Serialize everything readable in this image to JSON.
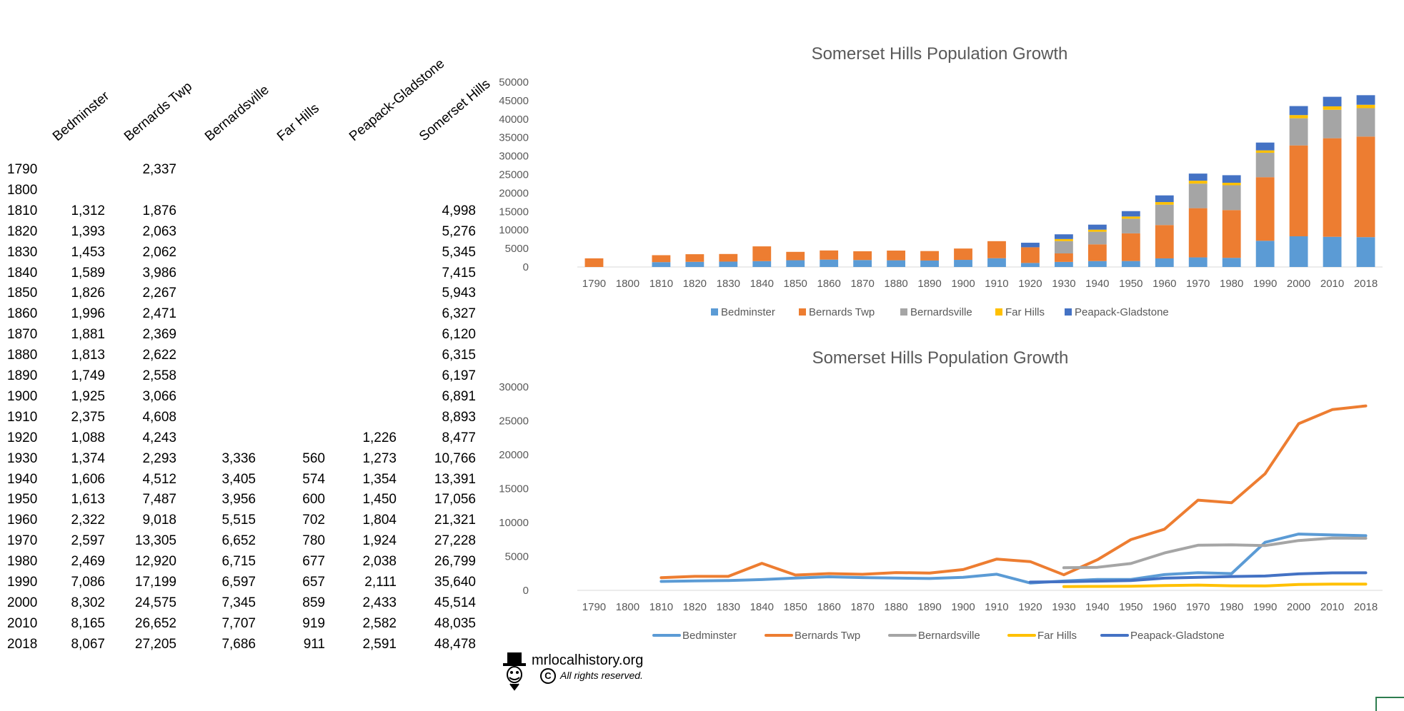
{
  "table": {
    "columns": [
      "Bedminster",
      "Bernards Twp",
      "Bernardsville",
      "Far Hills",
      "Peapack-Gladstone",
      "Somerset Hills"
    ],
    "rows": [
      {
        "year": "1790",
        "values": [
          "",
          "2,337",
          "",
          "",
          "",
          ""
        ]
      },
      {
        "year": "1800",
        "values": [
          "",
          "",
          "",
          "",
          "",
          ""
        ]
      },
      {
        "year": "1810",
        "values": [
          "1,312",
          "1,876",
          "",
          "",
          "",
          "4,998"
        ]
      },
      {
        "year": "1820",
        "values": [
          "1,393",
          "2,063",
          "",
          "",
          "",
          "5,276"
        ]
      },
      {
        "year": "1830",
        "values": [
          "1,453",
          "2,062",
          "",
          "",
          "",
          "5,345"
        ]
      },
      {
        "year": "1840",
        "values": [
          "1,589",
          "3,986",
          "",
          "",
          "",
          "7,415"
        ]
      },
      {
        "year": "1850",
        "values": [
          "1,826",
          "2,267",
          "",
          "",
          "",
          "5,943"
        ]
      },
      {
        "year": "1860",
        "values": [
          "1,996",
          "2,471",
          "",
          "",
          "",
          "6,327"
        ]
      },
      {
        "year": "1870",
        "values": [
          "1,881",
          "2,369",
          "",
          "",
          "",
          "6,120"
        ]
      },
      {
        "year": "1880",
        "values": [
          "1,813",
          "2,622",
          "",
          "",
          "",
          "6,315"
        ]
      },
      {
        "year": "1890",
        "values": [
          "1,749",
          "2,558",
          "",
          "",
          "",
          "6,197"
        ]
      },
      {
        "year": "1900",
        "values": [
          "1,925",
          "3,066",
          "",
          "",
          "",
          "6,891"
        ]
      },
      {
        "year": "1910",
        "values": [
          "2,375",
          "4,608",
          "",
          "",
          "",
          "8,893"
        ]
      },
      {
        "year": "1920",
        "values": [
          "1,088",
          "4,243",
          "",
          "",
          "1,226",
          "8,477"
        ]
      },
      {
        "year": "1930",
        "values": [
          "1,374",
          "2,293",
          "3,336",
          "560",
          "1,273",
          "10,766"
        ]
      },
      {
        "year": "1940",
        "values": [
          "1,606",
          "4,512",
          "3,405",
          "574",
          "1,354",
          "13,391"
        ]
      },
      {
        "year": "1950",
        "values": [
          "1,613",
          "7,487",
          "3,956",
          "600",
          "1,450",
          "17,056"
        ]
      },
      {
        "year": "1960",
        "values": [
          "2,322",
          "9,018",
          "5,515",
          "702",
          "1,804",
          "21,321"
        ]
      },
      {
        "year": "1970",
        "values": [
          "2,597",
          "13,305",
          "6,652",
          "780",
          "1,924",
          "27,228"
        ]
      },
      {
        "year": "1980",
        "values": [
          "2,469",
          "12,920",
          "6,715",
          "677",
          "2,038",
          "26,799"
        ]
      },
      {
        "year": "1990",
        "values": [
          "7,086",
          "17,199",
          "6,597",
          "657",
          "2,111",
          "35,640"
        ]
      },
      {
        "year": "2000",
        "values": [
          "8,302",
          "24,575",
          "7,345",
          "859",
          "2,433",
          "45,514"
        ]
      },
      {
        "year": "2010",
        "values": [
          "8,165",
          "26,652",
          "7,707",
          "919",
          "2,582",
          "48,035"
        ]
      },
      {
        "year": "2018",
        "values": [
          "8,067",
          "27,205",
          "7,686",
          "911",
          "2,591",
          "48,478"
        ]
      }
    ]
  },
  "chart_data": [
    {
      "type": "bar",
      "stacked": true,
      "title": "Somerset Hills Population Growth",
      "categories": [
        "1790",
        "1800",
        "1810",
        "1820",
        "1830",
        "1840",
        "1850",
        "1860",
        "1870",
        "1880",
        "1890",
        "1900",
        "1910",
        "1920",
        "1930",
        "1940",
        "1950",
        "1960",
        "1970",
        "1980",
        "1990",
        "2000",
        "2010",
        "2018"
      ],
      "ylim": [
        0,
        50000
      ],
      "yticks": [
        0,
        5000,
        10000,
        15000,
        20000,
        25000,
        30000,
        35000,
        40000,
        45000,
        50000
      ],
      "legend": "bottom",
      "grid": false,
      "series": [
        {
          "name": "Bedminster",
          "color": "#5b9bd5",
          "values": [
            null,
            null,
            1312,
            1393,
            1453,
            1589,
            1826,
            1996,
            1881,
            1813,
            1749,
            1925,
            2375,
            1088,
            1374,
            1606,
            1613,
            2322,
            2597,
            2469,
            7086,
            8302,
            8165,
            8067
          ]
        },
        {
          "name": "Bernards Twp",
          "color": "#ed7d31",
          "values": [
            2337,
            null,
            1876,
            2063,
            2062,
            3986,
            2267,
            2471,
            2369,
            2622,
            2558,
            3066,
            4608,
            4243,
            2293,
            4512,
            7487,
            9018,
            13305,
            12920,
            17199,
            24575,
            26652,
            27205
          ]
        },
        {
          "name": "Bernardsville",
          "color": "#a5a5a5",
          "values": [
            null,
            null,
            null,
            null,
            null,
            null,
            null,
            null,
            null,
            null,
            null,
            null,
            null,
            null,
            3336,
            3405,
            3956,
            5515,
            6652,
            6715,
            6597,
            7345,
            7707,
            7686
          ]
        },
        {
          "name": "Far Hills",
          "color": "#ffc000",
          "values": [
            null,
            null,
            null,
            null,
            null,
            null,
            null,
            null,
            null,
            null,
            null,
            null,
            null,
            null,
            560,
            574,
            600,
            702,
            780,
            677,
            657,
            859,
            919,
            911
          ]
        },
        {
          "name": "Peapack-Gladstone",
          "color": "#4472c4",
          "values": [
            null,
            null,
            null,
            null,
            null,
            null,
            null,
            null,
            null,
            null,
            null,
            null,
            null,
            1226,
            1273,
            1354,
            1450,
            1804,
            1924,
            2038,
            2111,
            2433,
            2582,
            2591
          ]
        }
      ]
    },
    {
      "type": "line",
      "title": "Somerset Hills Population Growth",
      "categories": [
        "1790",
        "1800",
        "1810",
        "1820",
        "1830",
        "1840",
        "1850",
        "1860",
        "1870",
        "1880",
        "1890",
        "1900",
        "1910",
        "1920",
        "1930",
        "1940",
        "1950",
        "1960",
        "1970",
        "1980",
        "1990",
        "2000",
        "2010",
        "2018"
      ],
      "ylim": [
        0,
        30000
      ],
      "yticks": [
        0,
        5000,
        10000,
        15000,
        20000,
        25000,
        30000
      ],
      "legend": "bottom",
      "grid": false,
      "series": [
        {
          "name": "Bedminster",
          "color": "#5b9bd5",
          "values": [
            null,
            null,
            1312,
            1393,
            1453,
            1589,
            1826,
            1996,
            1881,
            1813,
            1749,
            1925,
            2375,
            1088,
            1374,
            1606,
            1613,
            2322,
            2597,
            2469,
            7086,
            8302,
            8165,
            8067
          ]
        },
        {
          "name": "Bernards Twp",
          "color": "#ed7d31",
          "values": [
            null,
            null,
            1876,
            2063,
            2062,
            3986,
            2267,
            2471,
            2369,
            2622,
            2558,
            3066,
            4608,
            4243,
            2293,
            4512,
            7487,
            9018,
            13305,
            12920,
            17199,
            24575,
            26652,
            27205
          ]
        },
        {
          "name": "Bernardsville",
          "color": "#a5a5a5",
          "values": [
            null,
            null,
            null,
            null,
            null,
            null,
            null,
            null,
            null,
            null,
            null,
            null,
            null,
            null,
            3336,
            3405,
            3956,
            5515,
            6652,
            6715,
            6597,
            7345,
            7707,
            7686
          ]
        },
        {
          "name": "Far Hills",
          "color": "#ffc000",
          "values": [
            null,
            null,
            null,
            null,
            null,
            null,
            null,
            null,
            null,
            null,
            null,
            null,
            null,
            null,
            560,
            574,
            600,
            702,
            780,
            677,
            657,
            859,
            919,
            911
          ]
        },
        {
          "name": "Peapack-Gladstone",
          "color": "#4472c4",
          "values": [
            null,
            null,
            null,
            null,
            null,
            null,
            null,
            null,
            null,
            null,
            null,
            null,
            null,
            1226,
            1273,
            1354,
            1450,
            1804,
            1924,
            2038,
            2111,
            2433,
            2582,
            2591
          ]
        }
      ]
    }
  ],
  "footer": {
    "site": "mrlocalhistory.org",
    "copyright_symbol": "C",
    "rights": "All rights reserved.",
    "icon": "top-hat-mascot-icon"
  }
}
